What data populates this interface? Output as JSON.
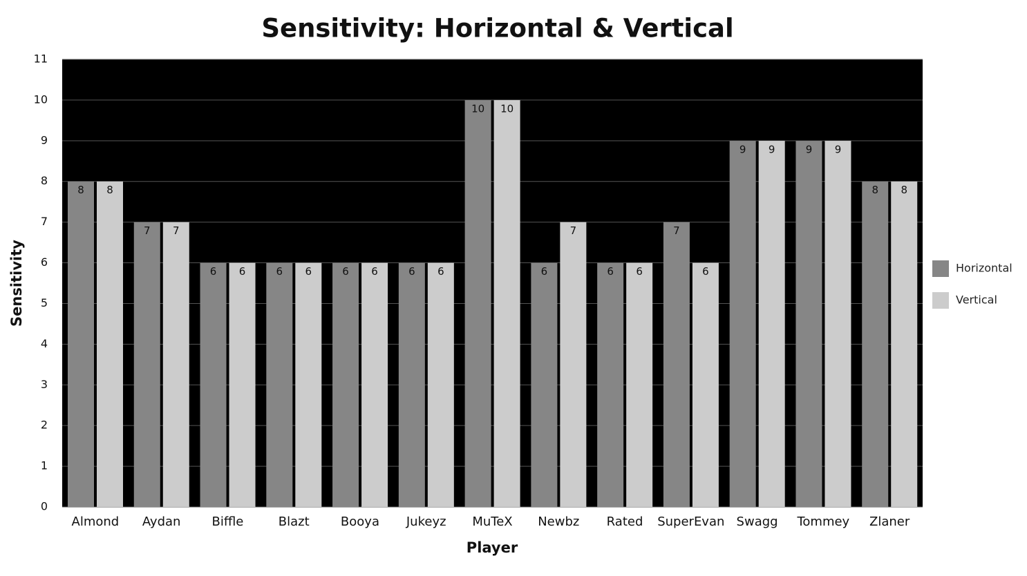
{
  "chart_data": {
    "type": "bar",
    "title": "Sensitivity: Horizontal & Vertical",
    "x_label": "Player",
    "y_label": "Sensitivity",
    "categories": [
      "Almond",
      "Aydan",
      "Biffle",
      "Blazt",
      "Booya",
      "Jukeyz",
      "MuTeX",
      "Newbz",
      "Rated",
      "SuperEvan",
      "Swagg",
      "Tommey",
      "Zlaner"
    ],
    "series": [
      {
        "name": "Horizontal",
        "color": "#868686",
        "values": [
          8,
          7,
          6,
          6,
          6,
          6,
          10,
          6,
          6,
          7,
          9,
          9,
          8
        ]
      },
      {
        "name": "Vertical",
        "color": "#cccccc",
        "values": [
          8,
          7,
          6,
          6,
          6,
          6,
          10,
          7,
          6,
          6,
          9,
          9,
          8
        ]
      }
    ],
    "ylim": [
      0,
      11
    ],
    "yticks": [
      0,
      1,
      2,
      3,
      4,
      5,
      6,
      7,
      8,
      9,
      10,
      11
    ],
    "grid": true,
    "legend": "right",
    "data_labels": true
  }
}
